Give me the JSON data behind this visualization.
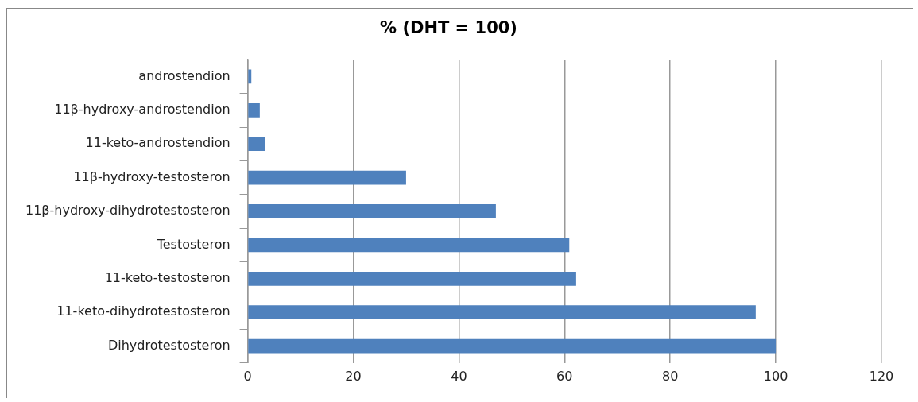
{
  "chart_data": {
    "type": "bar",
    "orientation": "horizontal",
    "title": "% (DHT = 100)",
    "categories": [
      "androstendion",
      "11β-hydroxy-androstendion",
      "11-keto-androstendion",
      "11β-hydroxy-testosteron",
      "11β-hydroxy-dihydrotestosteron",
      "Testosteron",
      "11-keto-testosteron",
      "11-keto-dihydrotestosteron",
      "Dihydrotestosteron"
    ],
    "values": [
      0.7,
      2.3,
      3.3,
      30,
      47,
      60.9,
      62.2,
      96.2,
      100
    ],
    "color": "#4f81bd",
    "xlim": [
      0,
      120
    ],
    "xticks": [
      0,
      20,
      40,
      60,
      80,
      100,
      120
    ],
    "grid": "x",
    "legend": false
  }
}
